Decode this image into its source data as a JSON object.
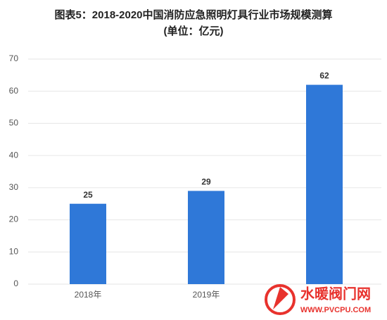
{
  "chart_data": {
    "type": "bar",
    "title": "图表5：2018-2020中国消防应急照明灯具行业市场规模测算",
    "subtitle": "(单位：亿元)",
    "categories": [
      "2018年",
      "2019年",
      null
    ],
    "values": [
      25,
      29,
      62
    ],
    "color": "#2f78d8",
    "ylim": [
      0,
      70
    ],
    "yticks": [
      0,
      10,
      20,
      30,
      40,
      50,
      60,
      70
    ],
    "grid": true,
    "watermark": {
      "name": "水暖阀门网",
      "url": "WWW.PVCPU.COM"
    }
  }
}
